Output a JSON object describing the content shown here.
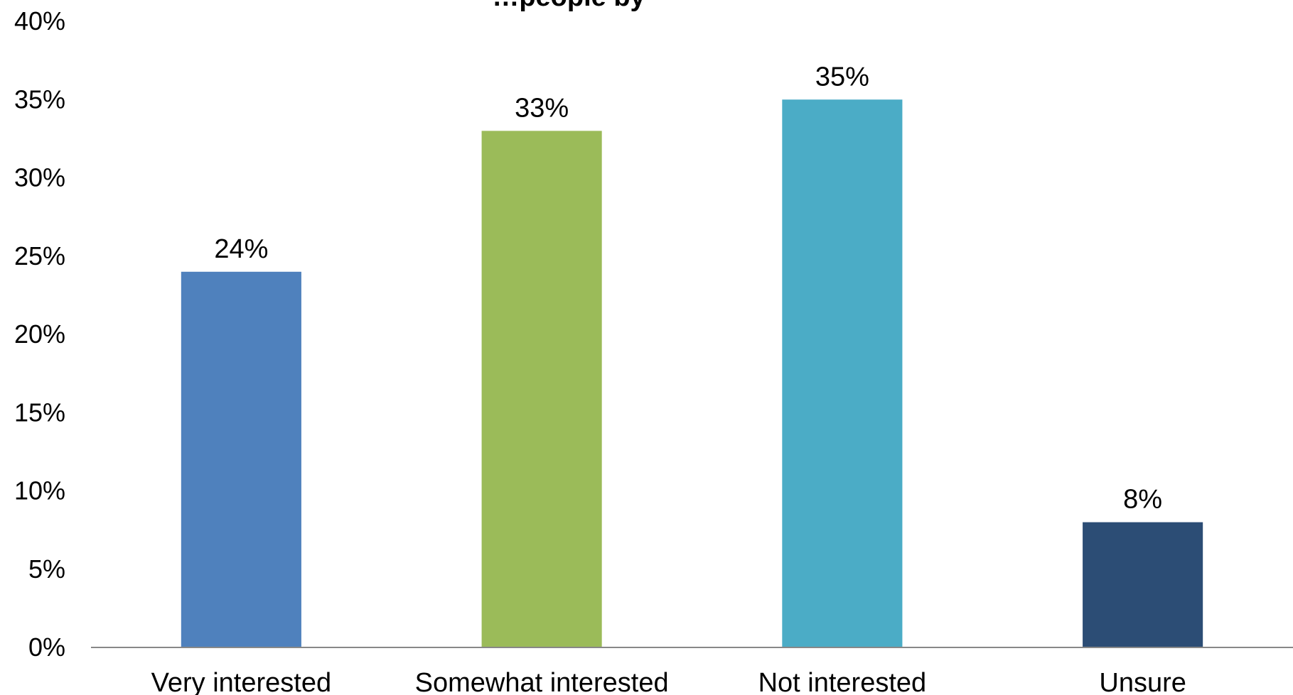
{
  "chart_data": {
    "type": "bar",
    "title": "…people by",
    "categories": [
      "Very interested",
      "Somewhat interested",
      "Not interested",
      "Unsure"
    ],
    "values": [
      24,
      33,
      35,
      8
    ],
    "data_labels": [
      "24%",
      "33%",
      "35%",
      "8%"
    ],
    "colors": [
      "#4F81BD",
      "#9BBB59",
      "#4BACC6",
      "#2C4D75"
    ],
    "ylim": [
      0,
      40
    ],
    "y_ticks": [
      0,
      5,
      10,
      15,
      20,
      25,
      30,
      35,
      40
    ],
    "y_tick_labels": [
      "0%",
      "5%",
      "10%",
      "15%",
      "20%",
      "25%",
      "30%",
      "35%",
      "40%"
    ],
    "grid": false,
    "legend": "none",
    "xlabel": "",
    "ylabel": ""
  }
}
